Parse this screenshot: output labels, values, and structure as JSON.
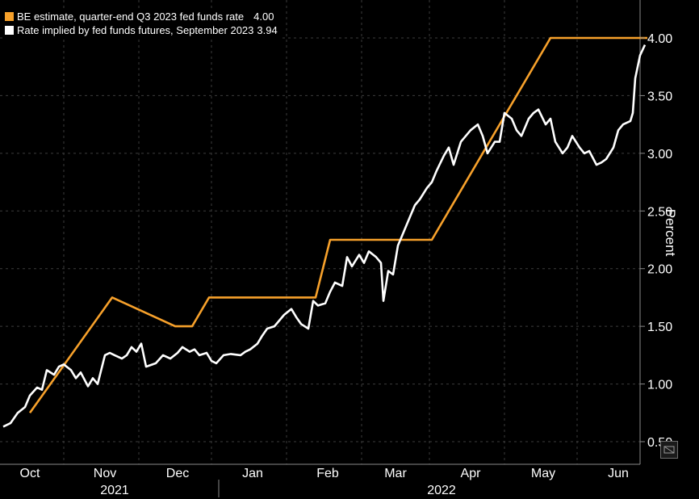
{
  "chart_data": {
    "type": "line",
    "ylabel": "Percent",
    "ylim": [
      0.45,
      4.3
    ],
    "y_ticks": [
      "0.50",
      "1.00",
      "1.50",
      "2.00",
      "2.50",
      "3.00",
      "3.50",
      "4.00"
    ],
    "y_axis_side": "right",
    "grid": "dashed",
    "legend_placement": "top-left",
    "x_month_labels": [
      "Oct",
      "Nov",
      "Dec",
      "Jan",
      "Feb",
      "Mar",
      "Apr",
      "May",
      "Jun"
    ],
    "x_year_labels": [
      "2021",
      "2022"
    ],
    "series": [
      {
        "name": "BE estimate, quarter-end Q3 2023 fed funds rate",
        "last_value": "4.00",
        "color": "#f7a12b",
        "points": [
          [
            "2021-10-01",
            0.75
          ],
          [
            "2021-11-04",
            1.75
          ],
          [
            "2021-11-30",
            1.5
          ],
          [
            "2021-12-07",
            1.5
          ],
          [
            "2021-12-14",
            1.75
          ],
          [
            "2022-01-27",
            1.75
          ],
          [
            "2022-02-02",
            2.25
          ],
          [
            "2022-03-16",
            2.25
          ],
          [
            "2022-05-04",
            4.0
          ],
          [
            "2022-06-13",
            4.0
          ]
        ]
      },
      {
        "name": "Rate implied by fed funds futures, September 2023",
        "last_value": "3.94",
        "color": "#ffffff",
        "points": [
          [
            "2021-09-20",
            0.63
          ],
          [
            "2021-09-23",
            0.66
          ],
          [
            "2021-09-26",
            0.75
          ],
          [
            "2021-09-29",
            0.8
          ],
          [
            "2021-10-01",
            0.9
          ],
          [
            "2021-10-04",
            0.97
          ],
          [
            "2021-10-06",
            0.95
          ],
          [
            "2021-10-08",
            1.12
          ],
          [
            "2021-10-11",
            1.08
          ],
          [
            "2021-10-13",
            1.15
          ],
          [
            "2021-10-15",
            1.17
          ],
          [
            "2021-10-18",
            1.12
          ],
          [
            "2021-10-20",
            1.05
          ],
          [
            "2021-10-22",
            1.1
          ],
          [
            "2021-10-25",
            0.98
          ],
          [
            "2021-10-27",
            1.05
          ],
          [
            "2021-10-29",
            1.0
          ],
          [
            "2021-11-01",
            1.25
          ],
          [
            "2021-11-03",
            1.27
          ],
          [
            "2021-11-05",
            1.25
          ],
          [
            "2021-11-08",
            1.22
          ],
          [
            "2021-11-10",
            1.25
          ],
          [
            "2021-11-12",
            1.32
          ],
          [
            "2021-11-14",
            1.28
          ],
          [
            "2021-11-16",
            1.35
          ],
          [
            "2021-11-18",
            1.15
          ],
          [
            "2021-11-22",
            1.18
          ],
          [
            "2021-11-25",
            1.25
          ],
          [
            "2021-11-28",
            1.22
          ],
          [
            "2021-12-01",
            1.27
          ],
          [
            "2021-12-03",
            1.32
          ],
          [
            "2021-12-06",
            1.28
          ],
          [
            "2021-12-08",
            1.3
          ],
          [
            "2021-12-10",
            1.25
          ],
          [
            "2021-12-13",
            1.27
          ],
          [
            "2021-12-15",
            1.2
          ],
          [
            "2021-12-17",
            1.18
          ],
          [
            "2021-12-20",
            1.25
          ],
          [
            "2021-12-23",
            1.26
          ],
          [
            "2021-12-27",
            1.25
          ],
          [
            "2021-12-29",
            1.28
          ],
          [
            "2021-12-31",
            1.3
          ],
          [
            "2022-01-03",
            1.35
          ],
          [
            "2022-01-05",
            1.42
          ],
          [
            "2022-01-07",
            1.48
          ],
          [
            "2022-01-10",
            1.5
          ],
          [
            "2022-01-12",
            1.55
          ],
          [
            "2022-01-14",
            1.6
          ],
          [
            "2022-01-17",
            1.65
          ],
          [
            "2022-01-19",
            1.58
          ],
          [
            "2022-01-21",
            1.52
          ],
          [
            "2022-01-24",
            1.48
          ],
          [
            "2022-01-26",
            1.72
          ],
          [
            "2022-01-28",
            1.68
          ],
          [
            "2022-01-31",
            1.7
          ],
          [
            "2022-02-02",
            1.8
          ],
          [
            "2022-02-04",
            1.88
          ],
          [
            "2022-02-07",
            1.85
          ],
          [
            "2022-02-09",
            2.1
          ],
          [
            "2022-02-11",
            2.02
          ],
          [
            "2022-02-14",
            2.12
          ],
          [
            "2022-02-16",
            2.05
          ],
          [
            "2022-02-18",
            2.15
          ],
          [
            "2022-02-21",
            2.1
          ],
          [
            "2022-02-23",
            2.05
          ],
          [
            "2022-02-24",
            1.72
          ],
          [
            "2022-02-26",
            1.98
          ],
          [
            "2022-02-28",
            1.95
          ],
          [
            "2022-03-02",
            2.2
          ],
          [
            "2022-03-04",
            2.3
          ],
          [
            "2022-03-07",
            2.45
          ],
          [
            "2022-03-09",
            2.55
          ],
          [
            "2022-03-11",
            2.6
          ],
          [
            "2022-03-14",
            2.7
          ],
          [
            "2022-03-16",
            2.75
          ],
          [
            "2022-03-18",
            2.85
          ],
          [
            "2022-03-21",
            2.98
          ],
          [
            "2022-03-23",
            3.05
          ],
          [
            "2022-03-25",
            2.9
          ],
          [
            "2022-03-28",
            3.1
          ],
          [
            "2022-03-30",
            3.15
          ],
          [
            "2022-04-01",
            3.2
          ],
          [
            "2022-04-04",
            3.25
          ],
          [
            "2022-04-06",
            3.15
          ],
          [
            "2022-04-08",
            3.0
          ],
          [
            "2022-04-11",
            3.1
          ],
          [
            "2022-04-13",
            3.1
          ],
          [
            "2022-04-15",
            3.35
          ],
          [
            "2022-04-18",
            3.3
          ],
          [
            "2022-04-20",
            3.2
          ],
          [
            "2022-04-22",
            3.15
          ],
          [
            "2022-04-25",
            3.3
          ],
          [
            "2022-04-27",
            3.35
          ],
          [
            "2022-04-29",
            3.38
          ],
          [
            "2022-05-02",
            3.25
          ],
          [
            "2022-05-04",
            3.3
          ],
          [
            "2022-05-06",
            3.1
          ],
          [
            "2022-05-09",
            3.0
          ],
          [
            "2022-05-11",
            3.05
          ],
          [
            "2022-05-13",
            3.15
          ],
          [
            "2022-05-16",
            3.05
          ],
          [
            "2022-05-18",
            3.0
          ],
          [
            "2022-05-20",
            3.02
          ],
          [
            "2022-05-23",
            2.9
          ],
          [
            "2022-05-25",
            2.92
          ],
          [
            "2022-05-27",
            2.95
          ],
          [
            "2022-05-30",
            3.05
          ],
          [
            "2022-06-01",
            3.2
          ],
          [
            "2022-06-03",
            3.25
          ],
          [
            "2022-06-06",
            3.28
          ],
          [
            "2022-06-07",
            3.35
          ],
          [
            "2022-06-08",
            3.65
          ],
          [
            "2022-06-10",
            3.85
          ],
          [
            "2022-06-12",
            3.94
          ]
        ]
      }
    ]
  }
}
